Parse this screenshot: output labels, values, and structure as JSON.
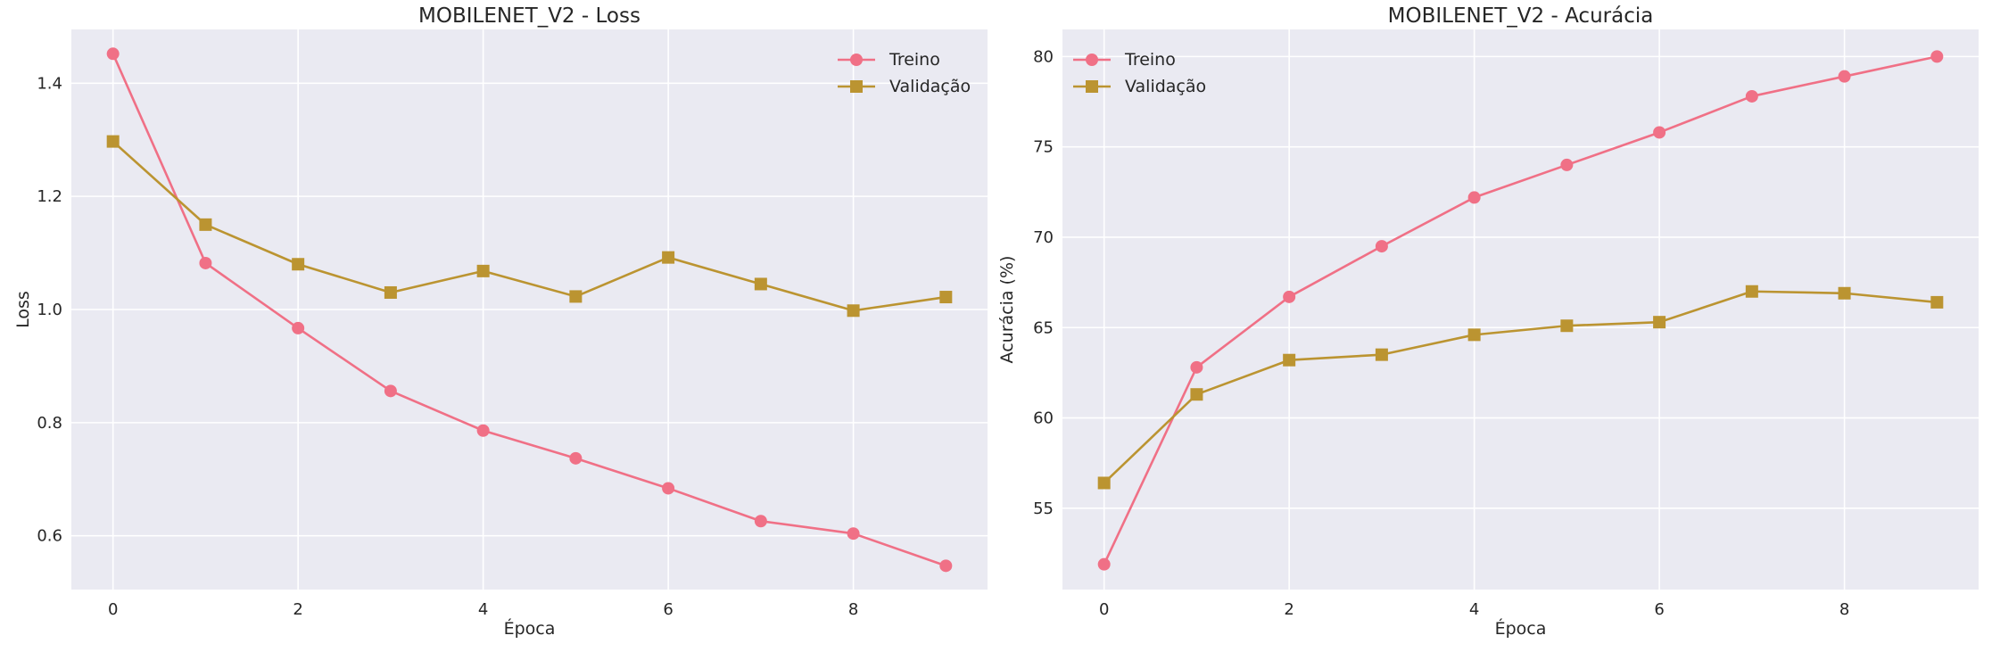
{
  "chart_data": [
    {
      "type": "line",
      "title": "MOBILENET_V2 - Loss",
      "xlabel": "Época",
      "ylabel": "Loss",
      "x": [
        0,
        1,
        2,
        3,
        4,
        5,
        6,
        7,
        8,
        9
      ],
      "xlim": [
        -0.45,
        9.45
      ],
      "ylim": [
        0.505,
        1.495
      ],
      "xticks": [
        0,
        2,
        4,
        6,
        8
      ],
      "yticks": [
        0.6,
        0.8,
        1.0,
        1.2,
        1.4
      ],
      "ytick_labels": [
        "0.6",
        "0.8",
        "1.0",
        "1.2",
        "1.4"
      ],
      "legend_loc": "upper right",
      "grid": true,
      "series": [
        {
          "name": "Treino",
          "marker": "circle",
          "color": "#f07086",
          "values": [
            1.452,
            1.082,
            0.967,
            0.856,
            0.786,
            0.737,
            0.684,
            0.626,
            0.604,
            0.547
          ]
        },
        {
          "name": "Validação",
          "marker": "square",
          "color": "#bb9431",
          "values": [
            1.297,
            1.15,
            1.08,
            1.03,
            1.068,
            1.023,
            1.092,
            1.045,
            0.998,
            1.022
          ]
        }
      ]
    },
    {
      "type": "line",
      "title": "MOBILENET_V2 - Acurácia",
      "xlabel": "Época",
      "ylabel": "Acurácia (%)",
      "x": [
        0,
        1,
        2,
        3,
        4,
        5,
        6,
        7,
        8,
        9
      ],
      "xlim": [
        -0.45,
        9.45
      ],
      "ylim": [
        50.5,
        81.5
      ],
      "xticks": [
        0,
        2,
        4,
        6,
        8
      ],
      "yticks": [
        55,
        60,
        65,
        70,
        75,
        80
      ],
      "ytick_labels": [
        "55",
        "60",
        "65",
        "70",
        "75",
        "80"
      ],
      "legend_loc": "upper left",
      "grid": true,
      "series": [
        {
          "name": "Treino",
          "marker": "circle",
          "color": "#f07086",
          "values": [
            51.9,
            62.8,
            66.7,
            69.5,
            72.2,
            74.0,
            75.8,
            77.8,
            78.9,
            80.0
          ]
        },
        {
          "name": "Validação",
          "marker": "square",
          "color": "#bb9431",
          "values": [
            56.4,
            61.3,
            63.2,
            63.5,
            64.6,
            65.1,
            65.3,
            67.0,
            66.9,
            66.4
          ]
        }
      ]
    }
  ],
  "style": {
    "panel_bg": "#eaeaf2",
    "grid_color": "#ffffff",
    "text_color": "#262626"
  }
}
